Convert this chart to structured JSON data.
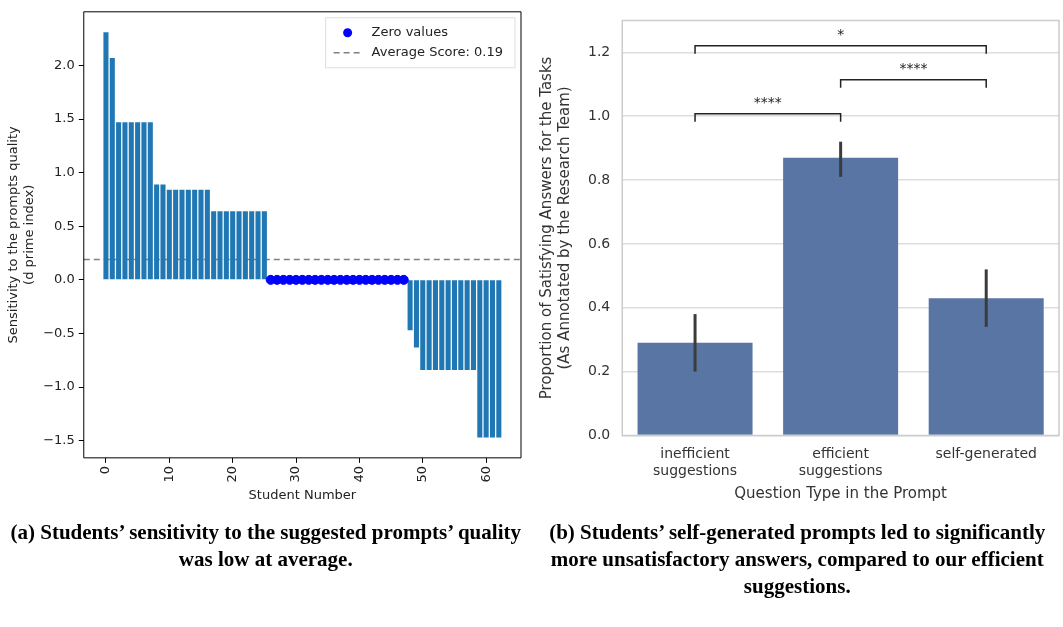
{
  "chart_data": [
    {
      "type": "bar",
      "x": [
        0,
        1,
        2,
        3,
        4,
        5,
        6,
        7,
        8,
        9,
        10,
        11,
        12,
        13,
        14,
        15,
        16,
        17,
        18,
        19,
        20,
        21,
        22,
        23,
        24,
        25,
        26,
        27,
        28,
        29,
        30,
        31,
        32,
        33,
        34,
        35,
        36,
        37,
        38,
        39,
        40,
        41,
        42,
        43,
        44,
        45,
        46,
        47,
        48,
        49,
        50,
        51,
        52,
        53,
        54,
        55,
        56,
        57,
        58,
        59,
        60,
        61,
        62
      ],
      "series": [
        {
          "color": "#1f77b4",
          "values": [
            2.31,
            2.07,
            1.47,
            1.47,
            1.47,
            1.47,
            1.47,
            1.47,
            0.89,
            0.89,
            0.84,
            0.84,
            0.84,
            0.84,
            0.84,
            0.84,
            0.84,
            0.64,
            0.64,
            0.64,
            0.64,
            0.64,
            0.64,
            0.64,
            0.64,
            0.64,
            null,
            null,
            null,
            null,
            null,
            null,
            null,
            null,
            null,
            null,
            null,
            null,
            null,
            null,
            null,
            null,
            null,
            null,
            null,
            null,
            null,
            null,
            -0.47,
            -0.63,
            -0.84,
            -0.84,
            -0.84,
            -0.84,
            -0.84,
            -0.84,
            -0.84,
            -0.84,
            -0.84,
            -1.47,
            -1.47,
            -1.47,
            -1.47
          ]
        },
        {
          "name": "Zero values",
          "type": "scatter",
          "color": "#0000ff",
          "x": [
            26,
            27,
            28,
            29,
            30,
            31,
            32,
            33,
            34,
            35,
            36,
            37,
            38,
            39,
            40,
            41,
            42,
            43,
            44,
            45,
            46,
            47
          ],
          "values": [
            0,
            0,
            0,
            0,
            0,
            0,
            0,
            0,
            0,
            0,
            0,
            0,
            0,
            0,
            0,
            0,
            0,
            0,
            0,
            0,
            0,
            0
          ]
        }
      ],
      "marker": "circle",
      "xlabel": "Student Number",
      "ylabel": "Sensitivity to the prompts quality\n(d prime index)",
      "xlim": [
        -3.5,
        65.5
      ],
      "xticks": [
        0,
        10,
        20,
        30,
        40,
        50,
        60
      ],
      "ylim": [
        -1.66,
        2.5
      ],
      "yticks": [
        {
          "value": -1.5,
          "label": "−1.5"
        },
        {
          "value": -1,
          "label": "−1.0"
        },
        {
          "value": -0.5,
          "label": "−0.5"
        },
        {
          "value": 0,
          "label": "0.0"
        },
        {
          "value": 0.5,
          "label": "0.5"
        },
        {
          "value": 1,
          "label": "1.0"
        },
        {
          "value": 1.5,
          "label": "1.5"
        },
        {
          "value": 2,
          "label": "2.0"
        }
      ],
      "ref_lines": [
        {
          "axis": "y",
          "value": 0.19,
          "label": "Average Score: 0.19",
          "color": "#808080",
          "line_style": "dashed"
        }
      ],
      "legend": "top right",
      "annotations": [
        "(a) Students’ sensitivity to the suggested prompts’ quality was low at average."
      ]
    },
    {
      "type": "bar",
      "categories": [
        "inefficient\nsuggestions",
        "efficient\nsuggestions",
        "self-generated"
      ],
      "values": [
        0.29,
        0.87,
        0.43
      ],
      "errors": [
        [
          0.2,
          0.38
        ],
        [
          0.81,
          0.92
        ],
        [
          0.34,
          0.52
        ]
      ],
      "color": "#5975a4",
      "xlabel": "Question Type in the Prompt",
      "ylabel": "Proportion of Satisfying Answers for the Tasks\n(As Annotated by the Research Team)",
      "ylim": [
        0,
        1.3
      ],
      "yticks": [
        {
          "value": 0,
          "label": "0.0"
        },
        {
          "value": 0.2,
          "label": "0.2"
        },
        {
          "value": 0.4,
          "label": "0.4"
        },
        {
          "value": 0.6,
          "label": "0.6"
        },
        {
          "value": 0.8,
          "label": "0.8"
        },
        {
          "value": 1,
          "label": "1.0"
        },
        {
          "value": 1.2,
          "label": "1.2"
        }
      ],
      "grid": "y",
      "annotations": [
        "****",
        "****",
        "*",
        "(b) Students’ self-generated prompts led to significantly more unsatisfactory answers, compared to our efficient suggestions."
      ]
    }
  ]
}
